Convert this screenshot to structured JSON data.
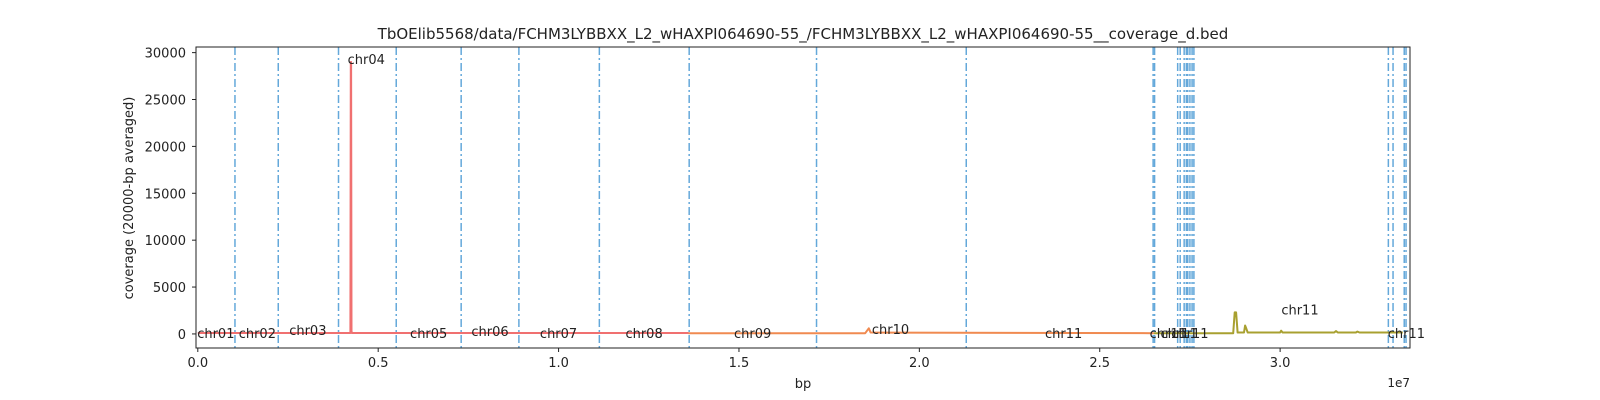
{
  "chart_data": {
    "type": "line",
    "title": "TbOElib5568/data/FCHM3LYBBXX_L2_wHAXPI064690-55_/FCHM3LYBBXX_L2_wHAXPI064690-55__coverage_d.bed",
    "xlabel": "bp",
    "ylabel": "coverage (20000-bp averaged)",
    "x_scale_note": "1e7",
    "xlim": [
      -50000,
      33600000
    ],
    "ylim": [
      -1500,
      30600
    ],
    "x_ticks": [
      0,
      5000000,
      10000000,
      15000000,
      20000000,
      25000000,
      30000000
    ],
    "x_tick_labels": [
      "0.0",
      "0.5",
      "1.0",
      "1.5",
      "2.0",
      "2.5",
      "3.0"
    ],
    "y_ticks": [
      0,
      5000,
      10000,
      15000,
      20000,
      25000,
      30000
    ],
    "y_tick_labels": [
      "0",
      "5000",
      "10000",
      "15000",
      "20000",
      "25000",
      "30000"
    ],
    "grid": false,
    "boundaries": [
      1030000,
      2230000,
      3900000,
      5500000,
      7300000,
      8900000,
      11130000,
      13620000,
      17150000,
      21300000,
      26480000,
      26520000,
      27160000,
      27230000,
      27340000,
      27400000,
      27440000,
      27500000,
      27560000,
      27610000,
      33000000,
      33130000,
      33440000,
      33490000
    ],
    "chromosome_labels": [
      {
        "text": "chr01",
        "x": 500000,
        "y": 0
      },
      {
        "text": "chr02",
        "x": 1650000,
        "y": 0
      },
      {
        "text": "chr03",
        "x": 3050000,
        "y": 300
      },
      {
        "text": "chr04",
        "x": 4670000,
        "y": 29200
      },
      {
        "text": "chr05",
        "x": 6400000,
        "y": 0
      },
      {
        "text": "chr06",
        "x": 8100000,
        "y": 200
      },
      {
        "text": "chr07",
        "x": 10000000,
        "y": 0
      },
      {
        "text": "chr08",
        "x": 12370000,
        "y": 0
      },
      {
        "text": "chr09",
        "x": 15380000,
        "y": 0
      },
      {
        "text": "chr10",
        "x": 19200000,
        "y": 400
      },
      {
        "text": "chr11",
        "x": 24000000,
        "y": 0
      },
      {
        "text": "chr11",
        "x": 26900000,
        "y": 0
      },
      {
        "text": "chr11",
        "x": 27200000,
        "y": 0
      },
      {
        "text": "chr11",
        "x": 27500000,
        "y": 0
      },
      {
        "text": "chr11",
        "x": 30550000,
        "y": 2500
      },
      {
        "text": "chr11",
        "x": 33500000,
        "y": 0
      }
    ],
    "series": [
      {
        "color": "#f07070",
        "x": [
          0,
          4230000,
          4240000,
          4250000,
          4260000,
          4270000,
          13600000
        ],
        "y": [
          100,
          100,
          29000,
          29000,
          300,
          100,
          100
        ]
      },
      {
        "color": "#f08a50",
        "x": [
          13600000,
          18500000,
          18560000,
          18600000,
          18650000,
          21000000,
          26500000
        ],
        "y": [
          80,
          80,
          400,
          600,
          150,
          120,
          80
        ]
      },
      {
        "color": "#a8a030",
        "x": [
          26500000,
          28700000,
          28740000,
          28780000,
          28820000,
          29000000,
          29030000,
          29060000,
          29100000,
          29300000,
          30000000,
          30030000,
          30070000,
          31500000,
          31550000,
          31600000,
          32100000,
          32140000,
          32200000,
          33400000
        ],
        "y": [
          80,
          80,
          2300,
          2300,
          150,
          150,
          900,
          600,
          150,
          150,
          150,
          350,
          150,
          150,
          300,
          150,
          150,
          250,
          150,
          150
        ]
      }
    ]
  }
}
